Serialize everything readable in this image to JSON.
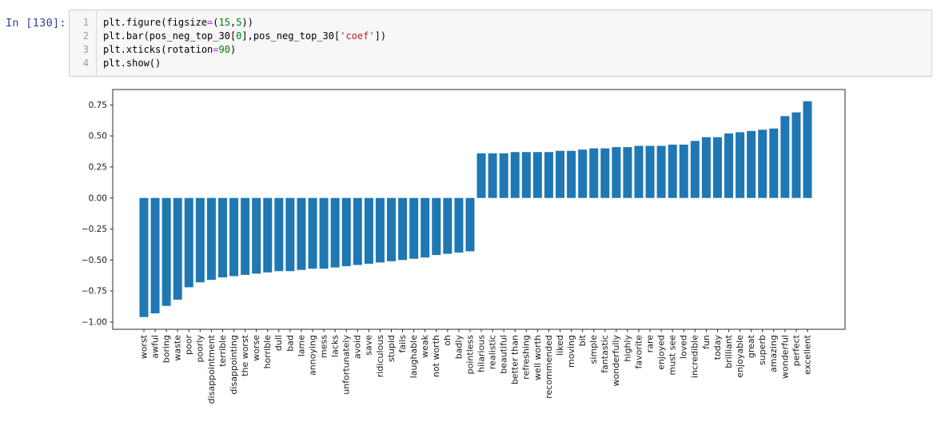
{
  "notebook": {
    "cell_prompt": "In [130]:",
    "code": {
      "lines": [
        {
          "number": "1",
          "tokens": [
            {
              "t": "plain",
              "v": "plt.figure(figsize"
            },
            {
              "t": "op",
              "v": "="
            },
            {
              "t": "plain",
              "v": "("
            },
            {
              "t": "num",
              "v": "15"
            },
            {
              "t": "plain",
              "v": ","
            },
            {
              "t": "num",
              "v": "5"
            },
            {
              "t": "plain",
              "v": "))"
            }
          ]
        },
        {
          "number": "2",
          "tokens": [
            {
              "t": "plain",
              "v": "plt.bar(pos_neg_top_30["
            },
            {
              "t": "num",
              "v": "0"
            },
            {
              "t": "plain",
              "v": "],pos_neg_top_30["
            },
            {
              "t": "str",
              "v": "'coef'"
            },
            {
              "t": "plain",
              "v": "])"
            }
          ]
        },
        {
          "number": "3",
          "tokens": [
            {
              "t": "plain",
              "v": "plt.xticks(rotation"
            },
            {
              "t": "op",
              "v": "="
            },
            {
              "t": "num",
              "v": "90"
            },
            {
              "t": "plain",
              "v": ")"
            }
          ]
        },
        {
          "number": "4",
          "tokens": [
            {
              "t": "plain",
              "v": "plt.show()"
            }
          ]
        }
      ]
    }
  },
  "colors": {
    "prompt": "#303F9F",
    "token_operator": "#AA22FF",
    "token_number": "#008000",
    "token_string": "#BA2121",
    "bar": "#1f77b4",
    "axis": "#2b2b2b",
    "tick_label": "#1a1a1a"
  },
  "chart_data": {
    "type": "bar",
    "title": "",
    "xlabel": "",
    "ylabel": "",
    "grid": false,
    "legend": null,
    "x_tick_rotation": 90,
    "ylim": [
      -1.06,
      0.87
    ],
    "yticks": [
      0.75,
      0.5,
      0.25,
      0.0,
      -0.25,
      -0.5,
      -0.75,
      -1.0
    ],
    "categories": [
      "worst",
      "awful",
      "boring",
      "waste",
      "poor",
      "poorly",
      "disappointment",
      "terrible",
      "disappointing",
      "the worst",
      "worse",
      "horrible",
      "dull",
      "bad",
      "lame",
      "annoying",
      "mess",
      "lacks",
      "unfortunately",
      "avoid",
      "save",
      "ridiculous",
      "stupid",
      "fails",
      "laughable",
      "weak",
      "not worth",
      "oh",
      "badly",
      "pointless",
      "hilarious",
      "realistic",
      "beautiful",
      "better than",
      "refreshing",
      "well worth",
      "recommended",
      "liked",
      "moving",
      "bit",
      "simple",
      "fantastic",
      "wonderfully",
      "highly",
      "favorite",
      "rare",
      "enjoyed",
      "must see",
      "loved",
      "incredible",
      "fun",
      "today",
      "brilliant",
      "enjoyable",
      "great",
      "superb",
      "amazing",
      "wonderful",
      "perfect",
      "excellent"
    ],
    "values": [
      -0.96,
      -0.93,
      -0.87,
      -0.82,
      -0.72,
      -0.68,
      -0.66,
      -0.64,
      -0.63,
      -0.62,
      -0.61,
      -0.6,
      -0.59,
      -0.59,
      -0.58,
      -0.57,
      -0.57,
      -0.56,
      -0.55,
      -0.54,
      -0.53,
      -0.52,
      -0.51,
      -0.5,
      -0.49,
      -0.48,
      -0.46,
      -0.45,
      -0.44,
      -0.43,
      0.36,
      0.36,
      0.36,
      0.37,
      0.37,
      0.37,
      0.37,
      0.38,
      0.38,
      0.39,
      0.4,
      0.4,
      0.41,
      0.41,
      0.42,
      0.42,
      0.42,
      0.43,
      0.43,
      0.46,
      0.49,
      0.49,
      0.52,
      0.53,
      0.54,
      0.55,
      0.56,
      0.66,
      0.69,
      0.78
    ]
  }
}
